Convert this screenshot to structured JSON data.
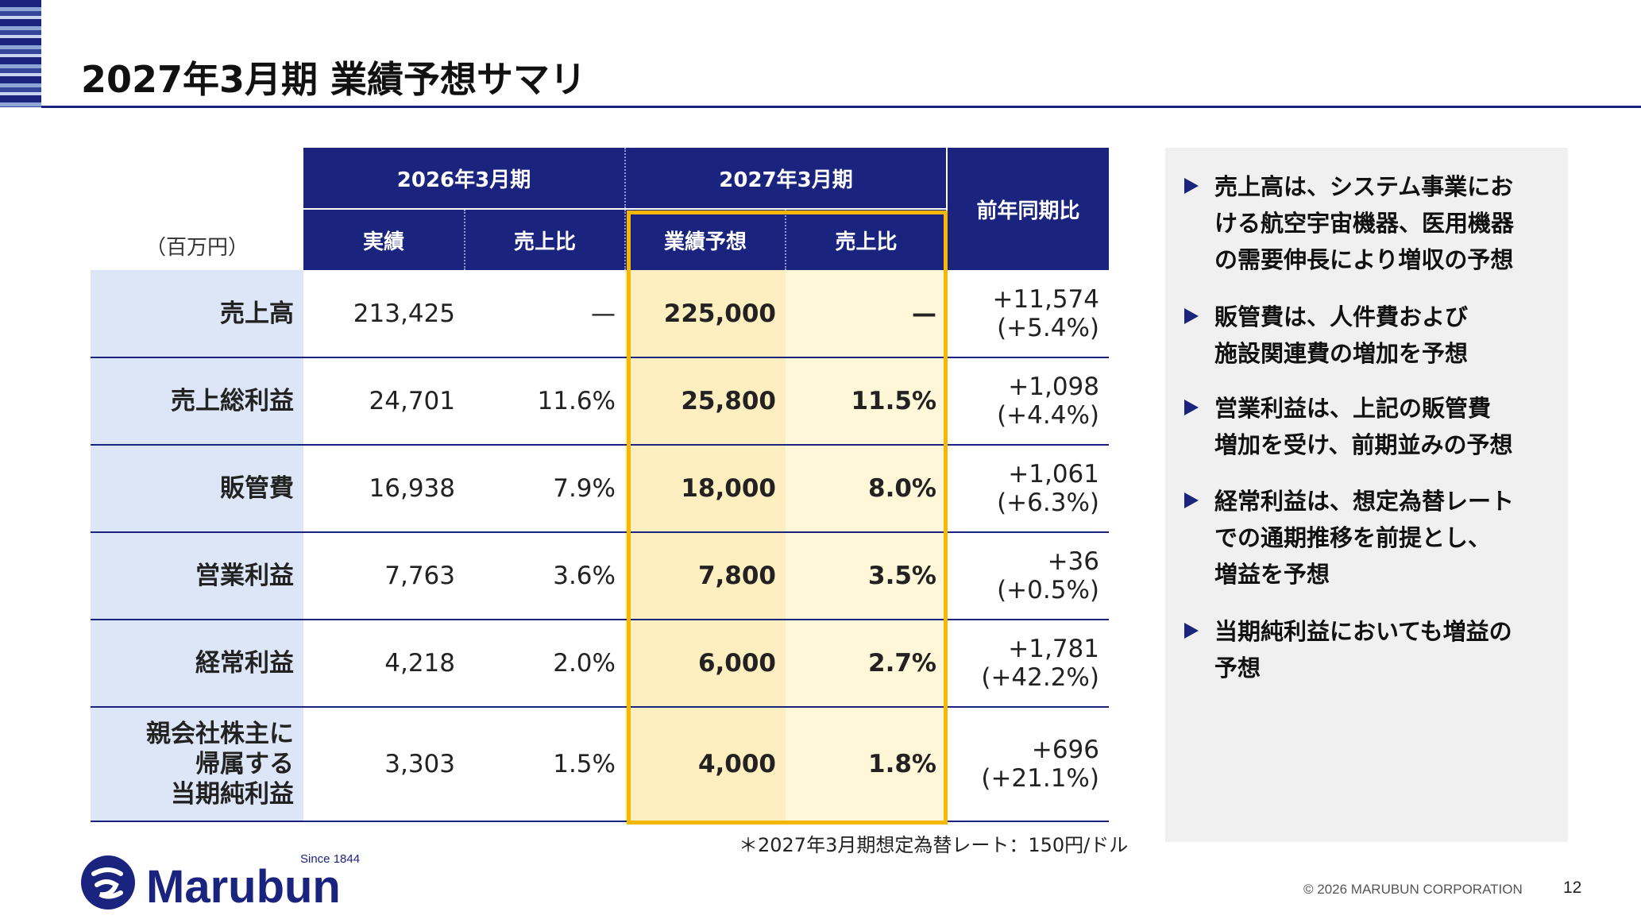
{
  "page_title": "2027年3月期 業績予想サマリ",
  "table": {
    "unit_label": "（百万円）",
    "header_period_prev": "2026年3月期",
    "header_period_next": "2027年3月期",
    "header_yoy": "前年同期比",
    "sub_actual": "実績",
    "sub_ratio_prev": "売上比",
    "sub_forecast": "業績予想",
    "sub_ratio_next": "売上比",
    "rows": [
      {
        "label_lines": [
          "売上高"
        ],
        "actual": "213,425",
        "ratio_prev": "—",
        "forecast": "225,000",
        "ratio_next": "—",
        "yoy_diff": "+11,574",
        "yoy_pct": "(+5.4%)"
      },
      {
        "label_lines": [
          "売上総利益"
        ],
        "actual": "24,701",
        "ratio_prev": "11.6%",
        "forecast": "25,800",
        "ratio_next": "11.5%",
        "yoy_diff": "+1,098",
        "yoy_pct": "(+4.4%)"
      },
      {
        "label_lines": [
          "販管費"
        ],
        "actual": "16,938",
        "ratio_prev": "7.9%",
        "forecast": "18,000",
        "ratio_next": "8.0%",
        "yoy_diff": "+1,061",
        "yoy_pct": "(+6.3%)"
      },
      {
        "label_lines": [
          "営業利益"
        ],
        "actual": "7,763",
        "ratio_prev": "3.6%",
        "forecast": "7,800",
        "ratio_next": "3.5%",
        "yoy_diff": "+36",
        "yoy_pct": "(+0.5%)"
      },
      {
        "label_lines": [
          "経常利益"
        ],
        "actual": "4,218",
        "ratio_prev": "2.0%",
        "forecast": "6,000",
        "ratio_next": "2.7%",
        "yoy_diff": "+1,781",
        "yoy_pct": "(+42.2%)"
      },
      {
        "label_lines": [
          "親会社株主に",
          "帰属する",
          "当期純利益"
        ],
        "actual": "3,303",
        "ratio_prev": "1.5%",
        "forecast": "4,000",
        "ratio_next": "1.8%",
        "yoy_diff": "+696",
        "yoy_pct": "(+21.1%)"
      }
    ]
  },
  "footnote": "＊2027年3月期想定為替レート：150円/ドル",
  "bullets": [
    [
      "売上高は、システム事業にお",
      "ける航空宇宙機器、医用機器",
      "の需要伸長により増収の予想"
    ],
    [
      "販管費は、人件費および",
      "施設関連費の増加を予想"
    ],
    [
      "営業利益は、上記の販管費",
      "増加を受け、前期並みの予想"
    ],
    [
      "経常利益は、想定為替レート",
      "での通期推移を前提とし、",
      "増益を予想"
    ],
    [
      "当期純利益においても増益の",
      "予想"
    ]
  ],
  "logo": {
    "name": "Marubun",
    "since": "Since 1844"
  },
  "copyright": "© 2026 MARUBUN CORPORATION",
  "page_number": "12",
  "colors": {
    "navy": "#1a237e",
    "highlight": "#f5b700",
    "forecast_bg": "#feeec0",
    "label_bg": "#dde6f6"
  }
}
